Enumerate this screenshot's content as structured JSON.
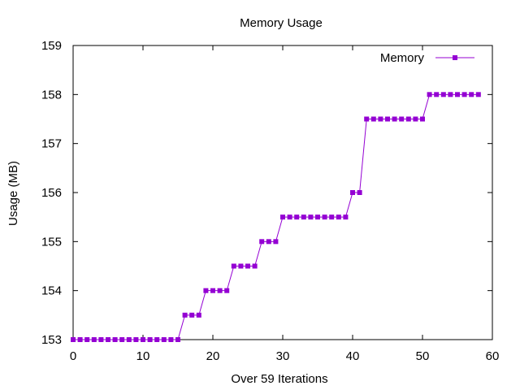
{
  "chart_data": {
    "type": "line",
    "title": "Memory Usage",
    "xlabel": "Over 59 Iterations",
    "ylabel": "Usage (MB)",
    "xlim": [
      0,
      60
    ],
    "ylim": [
      153,
      159
    ],
    "xticks": [
      0,
      10,
      20,
      30,
      40,
      50,
      60
    ],
    "yticks": [
      153,
      154,
      155,
      156,
      157,
      158,
      159
    ],
    "grid": false,
    "legend_position": "top-right",
    "series": [
      {
        "name": "Memory",
        "color": "#9400d3",
        "marker": "square",
        "x": [
          0,
          1,
          2,
          3,
          4,
          5,
          6,
          7,
          8,
          9,
          10,
          11,
          12,
          13,
          14,
          15,
          16,
          17,
          18,
          19,
          20,
          21,
          22,
          23,
          24,
          25,
          26,
          27,
          28,
          29,
          30,
          31,
          32,
          33,
          34,
          35,
          36,
          37,
          38,
          39,
          40,
          41,
          42,
          43,
          44,
          45,
          46,
          47,
          48,
          49,
          50,
          51,
          52,
          53,
          54,
          55,
          56,
          57,
          58
        ],
        "values": [
          153.0,
          153.0,
          153.0,
          153.0,
          153.0,
          153.0,
          153.0,
          153.0,
          153.0,
          153.0,
          153.0,
          153.0,
          153.0,
          153.0,
          153.0,
          153.0,
          153.5,
          153.5,
          153.5,
          154.0,
          154.0,
          154.0,
          154.0,
          154.5,
          154.5,
          154.5,
          154.5,
          155.0,
          155.0,
          155.0,
          155.5,
          155.5,
          155.5,
          155.5,
          155.5,
          155.5,
          155.5,
          155.5,
          155.5,
          155.5,
          156.0,
          156.0,
          157.5,
          157.5,
          157.5,
          157.5,
          157.5,
          157.5,
          157.5,
          157.5,
          157.5,
          158.0,
          158.0,
          158.0,
          158.0,
          158.0,
          158.0,
          158.0,
          158.0
        ]
      }
    ]
  }
}
